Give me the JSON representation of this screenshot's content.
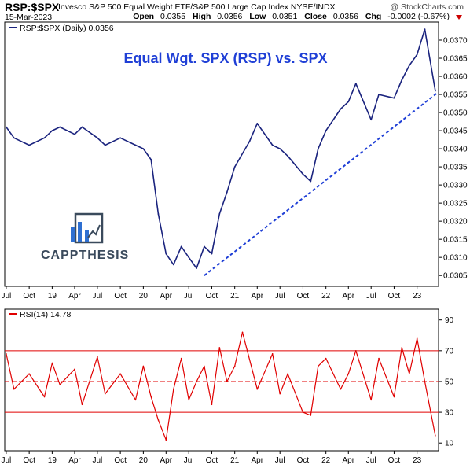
{
  "header": {
    "ticker": "RSP:$SPX",
    "description": "Invesco S&P 500 Equal Weight ETF/S&P 500 Large Cap Index  NYSE/INDX",
    "brand": "@ StockCharts.com",
    "date": "15-Mar-2023",
    "open_label": "Open",
    "open": "0.0355",
    "high_label": "High",
    "high": "0.0356",
    "low_label": "Low",
    "low": "0.0351",
    "close_label": "Close",
    "close": "0.0356",
    "chg_label": "Chg",
    "chg": "-0.0002 (-0.67%)"
  },
  "legend": {
    "price": "RSP:$SPX (Daily) 0.0356",
    "rsi": "RSI(14) 14.78"
  },
  "annotation": "Equal Wgt. SPX (RSP) vs. SPX",
  "logo_text": "CAPPTHESIS",
  "colors": {
    "price_line": "#1a237e",
    "trendline": "#1f3fd6",
    "title": "#1f3fd6",
    "rsi": "#e00000"
  },
  "chart_data": [
    {
      "type": "line",
      "title": "",
      "series": [
        {
          "name": "RSP:$SPX (Daily)",
          "x": [
            "2018-07",
            "2018-08",
            "2018-10",
            "2018-12",
            "2019-01",
            "2019-02",
            "2019-04",
            "2019-05",
            "2019-07",
            "2019-08",
            "2019-10",
            "2019-12",
            "2020-01",
            "2020-02",
            "2020-03",
            "2020-04",
            "2020-05",
            "2020-06",
            "2020-07",
            "2020-08",
            "2020-09",
            "2020-10",
            "2020-11",
            "2020-12",
            "2021-01",
            "2021-03",
            "2021-04",
            "2021-06",
            "2021-07",
            "2021-08",
            "2021-10",
            "2021-11",
            "2021-12",
            "2022-01",
            "2022-03",
            "2022-04",
            "2022-05",
            "2022-07",
            "2022-08",
            "2022-10",
            "2022-11",
            "2022-12",
            "2023-01",
            "2023-02",
            "2023-03-15"
          ],
          "values": [
            0.0346,
            0.0343,
            0.0341,
            0.0343,
            0.0345,
            0.0346,
            0.0344,
            0.0346,
            0.0343,
            0.0341,
            0.0343,
            0.0341,
            0.034,
            0.0337,
            0.0322,
            0.0311,
            0.0308,
            0.0313,
            0.031,
            0.0307,
            0.0313,
            0.0311,
            0.0322,
            0.0328,
            0.0335,
            0.0342,
            0.0347,
            0.0341,
            0.034,
            0.0338,
            0.0333,
            0.0331,
            0.034,
            0.0345,
            0.0351,
            0.0353,
            0.0358,
            0.0348,
            0.0355,
            0.0354,
            0.0359,
            0.0363,
            0.0366,
            0.0373,
            0.0356
          ]
        }
      ],
      "trendline": {
        "from": [
          "2020-09",
          0.0305
        ],
        "to": [
          "2023-03-15",
          0.03555
        ]
      },
      "ylim": [
        0.0302,
        0.0375
      ],
      "ytick_labels": [
        "0.0370",
        "0.0365",
        "0.0360",
        "0.0355",
        "0.0350",
        "0.0345",
        "0.0340",
        "0.0335",
        "0.0330",
        "0.0325",
        "0.0320",
        "0.0315",
        "0.0310",
        "0.0305"
      ],
      "xtick_labels": [
        "Jul",
        "Oct",
        "19",
        "Apr",
        "Jul",
        "Oct",
        "20",
        "Apr",
        "Jul",
        "Oct",
        "21",
        "Apr",
        "Jul",
        "Oct",
        "22",
        "Apr",
        "Jul",
        "Oct",
        "23"
      ],
      "grid": false,
      "legend": "top-left"
    },
    {
      "type": "line",
      "title": "",
      "series": [
        {
          "name": "RSI(14)",
          "x": [
            "2018-07",
            "2018-08",
            "2018-10",
            "2018-12",
            "2019-01",
            "2019-02",
            "2019-04",
            "2019-05",
            "2019-07",
            "2019-08",
            "2019-10",
            "2019-12",
            "2020-01",
            "2020-02",
            "2020-03",
            "2020-04",
            "2020-05",
            "2020-06",
            "2020-07",
            "2020-08",
            "2020-09",
            "2020-10",
            "2020-11",
            "2020-12",
            "2021-01",
            "2021-02",
            "2021-04",
            "2021-06",
            "2021-07",
            "2021-08",
            "2021-10",
            "2021-11",
            "2021-12",
            "2022-01",
            "2022-03",
            "2022-04",
            "2022-05",
            "2022-07",
            "2022-08",
            "2022-10",
            "2022-11",
            "2022-12",
            "2023-01",
            "2023-02",
            "2023-03-15"
          ],
          "values": [
            68,
            45,
            55,
            40,
            62,
            48,
            58,
            35,
            66,
            42,
            55,
            38,
            60,
            40,
            25,
            12,
            45,
            65,
            38,
            50,
            60,
            35,
            72,
            50,
            60,
            82,
            45,
            68,
            42,
            55,
            30,
            28,
            60,
            65,
            45,
            55,
            70,
            38,
            65,
            40,
            72,
            55,
            78,
            50,
            14.78
          ]
        }
      ],
      "ylim": [
        5,
        97
      ],
      "reference_lines": [
        70,
        50,
        30
      ],
      "ytick_labels": [
        "90",
        "70",
        "50",
        "30",
        "10"
      ],
      "xtick_labels": [
        "Jul",
        "Oct",
        "19",
        "Apr",
        "Jul",
        "Oct",
        "20",
        "Apr",
        "Jul",
        "Oct",
        "21",
        "Apr",
        "Jul",
        "Oct",
        "22",
        "Apr",
        "Jul",
        "Oct",
        "23"
      ],
      "grid": false,
      "legend": "top-left"
    }
  ]
}
